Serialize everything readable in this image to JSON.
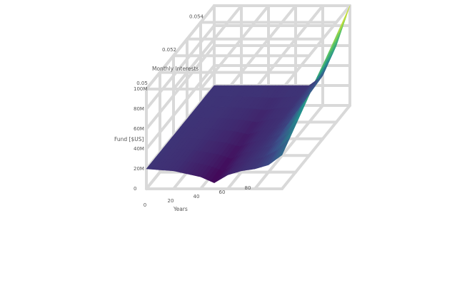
{
  "chart_data": {
    "type": "surface",
    "title": "",
    "axes": {
      "x": {
        "label": "Years",
        "ticks": [
          "0",
          "20",
          "40",
          "60",
          "80"
        ],
        "range": [
          0,
          100
        ]
      },
      "y": {
        "label": "Monthly Interests",
        "ticks": [
          "0.05",
          "0.052",
          "0.054"
        ],
        "range": [
          0.05,
          0.055
        ]
      },
      "z": {
        "label": "Fund [$US]",
        "ticks": [
          "0",
          "20M",
          "40M",
          "60M",
          "80M",
          "100M"
        ],
        "range": [
          0,
          100000000
        ]
      }
    },
    "series": [
      {
        "description_points_years": [
          0,
          20,
          40,
          50,
          60,
          70,
          80,
          90,
          100
        ],
        "fund_at_low_interest": [
          20000000,
          18000000,
          12000000,
          6000000,
          14000000,
          18000000,
          20000000,
          24000000,
          34000000
        ],
        "fund_at_high_interest": [
          20000000,
          20000000,
          20000000,
          20000000,
          20000000,
          20000000,
          30000000,
          60000000,
          100000000
        ]
      }
    ],
    "colorscale": "viridis",
    "grid": true,
    "legend": "none"
  }
}
